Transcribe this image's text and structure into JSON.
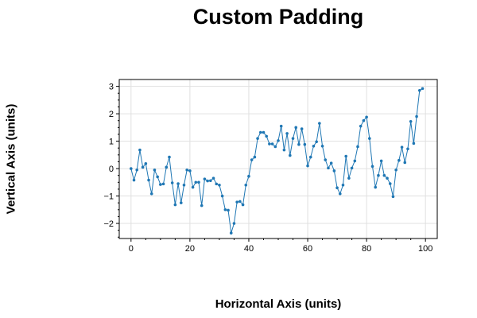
{
  "chart_data": {
    "type": "line",
    "title": "Custom Padding",
    "xlabel": "Horizontal Axis (units)",
    "ylabel": "Vertical Axis (units)",
    "xlim": [
      -4,
      104
    ],
    "ylim": [
      -2.55,
      3.25
    ],
    "xticks": [
      0,
      20,
      40,
      60,
      80,
      100
    ],
    "yticks": [
      -2,
      -1,
      0,
      1,
      2,
      3
    ],
    "grid": true,
    "colors": {
      "line": "#1f77b4",
      "grid": "#e0e0e0",
      "axis": "#000000"
    },
    "series": [
      {
        "x": [
          0,
          1,
          2,
          3,
          4,
          5,
          6,
          7,
          8,
          9,
          10,
          11,
          12,
          13,
          14,
          15,
          16,
          17,
          18,
          19,
          20,
          21,
          22,
          23,
          24,
          25,
          26,
          27,
          28,
          29,
          30,
          31,
          32,
          33,
          34,
          35,
          36,
          37,
          38,
          39,
          40,
          41,
          42,
          43,
          44,
          45,
          46,
          47,
          48,
          49,
          50,
          51,
          52,
          53,
          54,
          55,
          56,
          57,
          58,
          59,
          60,
          61,
          62,
          63,
          64,
          65,
          66,
          67,
          68,
          69,
          70,
          71,
          72,
          73,
          74,
          75,
          76,
          77,
          78,
          79,
          80,
          81,
          82,
          83,
          84,
          85,
          86,
          87,
          88,
          89,
          90,
          91,
          92,
          93,
          94,
          95,
          96,
          97,
          98,
          99
        ],
        "y": [
          0.0,
          -0.42,
          -0.05,
          0.68,
          0.05,
          0.18,
          -0.42,
          -0.92,
          -0.05,
          -0.3,
          -0.58,
          -0.56,
          0.05,
          0.42,
          -0.52,
          -1.32,
          -0.55,
          -1.25,
          -0.6,
          -0.05,
          -0.08,
          -0.68,
          -0.5,
          -0.5,
          -1.35,
          -0.38,
          -0.45,
          -0.44,
          -0.35,
          -0.56,
          -0.6,
          -1.0,
          -1.5,
          -1.52,
          -2.35,
          -2.0,
          -1.22,
          -1.2,
          -1.32,
          -0.6,
          -0.28,
          0.32,
          0.42,
          1.1,
          1.32,
          1.32,
          1.18,
          0.9,
          0.9,
          0.8,
          1.02,
          1.55,
          0.68,
          1.28,
          0.48,
          1.1,
          1.5,
          0.88,
          1.45,
          0.88,
          0.1,
          0.42,
          0.82,
          0.98,
          1.65,
          0.82,
          0.32,
          0.02,
          0.2,
          -0.08,
          -0.7,
          -0.92,
          -0.6,
          0.45,
          -0.35,
          0.02,
          0.28,
          0.8,
          1.55,
          1.75,
          1.88,
          1.1,
          0.08,
          -0.68,
          -0.25,
          0.28,
          -0.25,
          -0.35,
          -0.55,
          -1.02,
          -0.05,
          0.3,
          0.78,
          0.22,
          0.72,
          1.72,
          0.92,
          1.9,
          2.85,
          2.92
        ]
      }
    ]
  }
}
